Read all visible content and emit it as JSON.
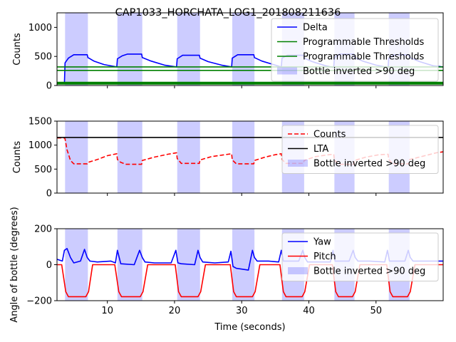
{
  "chart_data": [
    {
      "type": "line",
      "title": "CAP1033_HORCHATA_LOG1_201808211636",
      "xlabel": "",
      "ylabel": "Counts",
      "xlim": [
        2.5,
        60
      ],
      "ylim": [
        0,
        1250
      ],
      "xticks": [
        10,
        20,
        30,
        40,
        50
      ],
      "xtick_labels": [
        "",
        "",
        "",
        "",
        ""
      ],
      "yticks": [
        0,
        500,
        1000
      ],
      "ytick_labels": [
        "0",
        "500",
        "1000"
      ],
      "legend_position": "upper-right",
      "shaded_regions": {
        "name": "Bottle inverted >90 deg",
        "color": "#0000ff",
        "intervals": [
          [
            3.7,
            7.1
          ],
          [
            11.5,
            15.2
          ],
          [
            20.4,
            23.8
          ],
          [
            28.6,
            31.9
          ],
          [
            36.0,
            39.3
          ],
          [
            43.8,
            46.8
          ],
          [
            51.9,
            55.0
          ]
        ]
      },
      "series": [
        {
          "name": "Delta",
          "color": "#0000ff",
          "x": [
            2.5,
            3.6,
            3.7,
            4.2,
            5.0,
            7.0,
            7.1,
            8.0,
            9.5,
            11.4,
            11.5,
            12.2,
            13.0,
            15.1,
            15.2,
            16.5,
            18.5,
            20.3,
            20.4,
            21.2,
            23.7,
            23.8,
            25.0,
            27.0,
            28.5,
            28.6,
            29.4,
            31.8,
            31.9,
            33.0,
            35.0,
            35.9,
            36.0,
            36.8,
            39.2,
            39.3,
            40.5,
            42.5,
            43.7,
            43.8,
            44.6,
            46.7,
            46.8,
            48.0,
            50.0,
            51.8,
            51.9,
            52.7,
            54.9,
            55.0,
            56.5,
            58.5,
            60.0
          ],
          "y": [
            30,
            30,
            390,
            470,
            530,
            530,
            480,
            420,
            360,
            320,
            460,
            510,
            540,
            540,
            480,
            420,
            350,
            320,
            460,
            520,
            520,
            470,
            410,
            350,
            320,
            470,
            530,
            530,
            480,
            420,
            350,
            320,
            470,
            520,
            520,
            470,
            410,
            340,
            310,
            480,
            540,
            540,
            480,
            420,
            350,
            310,
            470,
            530,
            530,
            480,
            410,
            340,
            320
          ]
        },
        {
          "name": "Programmable Thresholds",
          "color": "#008000",
          "x": [
            2.5,
            60
          ],
          "y": [
            320,
            320
          ]
        },
        {
          "name": "Programmable Thresholds",
          "color": "#008000",
          "x": [
            2.5,
            60
          ],
          "y": [
            260,
            260
          ]
        },
        {
          "name": "",
          "color": "#008000",
          "x": [
            2.5,
            60
          ],
          "y": [
            40,
            40
          ]
        }
      ]
    },
    {
      "type": "line",
      "title": "",
      "xlabel": "",
      "ylabel": "Counts",
      "xlim": [
        2.5,
        60
      ],
      "ylim": [
        0,
        1500
      ],
      "xticks": [
        10,
        20,
        30,
        40,
        50
      ],
      "xtick_labels": [
        "",
        "",
        "",
        "",
        ""
      ],
      "yticks": [
        0,
        500,
        1000,
        1500
      ],
      "ytick_labels": [
        "0",
        "500",
        "1000",
        "1500"
      ],
      "legend_position": "upper-right",
      "shaded_regions": {
        "name": "Bottle inverted >90 deg",
        "color": "#0000ff",
        "intervals": [
          [
            3.7,
            7.1
          ],
          [
            11.5,
            15.2
          ],
          [
            20.4,
            23.8
          ],
          [
            28.6,
            31.9
          ],
          [
            36.0,
            39.3
          ],
          [
            43.8,
            46.8
          ],
          [
            51.9,
            55.0
          ]
        ]
      },
      "series": [
        {
          "name": "Counts",
          "color": "#ff0000",
          "dashed": true,
          "x": [
            2.5,
            3.6,
            3.7,
            4.0,
            4.5,
            5.0,
            7.0,
            7.1,
            8.5,
            10.0,
            11.4,
            11.5,
            12.0,
            12.8,
            15.1,
            15.2,
            17.0,
            19.0,
            20.3,
            20.4,
            21.0,
            23.7,
            23.8,
            25.5,
            27.5,
            28.5,
            28.6,
            29.2,
            31.8,
            31.9,
            33.5,
            35.0,
            35.9,
            36.0,
            36.6,
            39.2,
            39.3,
            41.0,
            43.0,
            43.7,
            43.8,
            44.4,
            46.7,
            46.8,
            48.5,
            50.5,
            51.8,
            51.9,
            52.5,
            54.9,
            55.0,
            57.0,
            59.0,
            60.0
          ],
          "y": [
            1150,
            1150,
            1130,
            900,
            680,
            610,
            610,
            640,
            700,
            780,
            820,
            700,
            640,
            600,
            600,
            680,
            750,
            810,
            840,
            720,
            620,
            620,
            690,
            760,
            800,
            820,
            690,
            610,
            610,
            680,
            750,
            800,
            820,
            700,
            620,
            620,
            680,
            760,
            800,
            810,
            690,
            600,
            600,
            680,
            750,
            800,
            810,
            700,
            610,
            610,
            700,
            770,
            840,
            860
          ]
        },
        {
          "name": "LTA",
          "color": "#000000",
          "x": [
            2.5,
            60
          ],
          "y": [
            1160,
            1160
          ]
        }
      ]
    },
    {
      "type": "line",
      "title": "",
      "xlabel": "Time (seconds)",
      "ylabel": "Angle of bottle (degrees)",
      "xlim": [
        2.5,
        60
      ],
      "ylim": [
        -200,
        200
      ],
      "xticks": [
        10,
        20,
        30,
        40,
        50
      ],
      "xtick_labels": [
        "10",
        "20",
        "30",
        "40",
        "50"
      ],
      "yticks": [
        -200,
        0,
        200
      ],
      "ytick_labels": [
        "−200",
        "0",
        "200"
      ],
      "legend_position": "upper-right",
      "shaded_regions": {
        "name": "Bottle inverted >90 deg",
        "color": "#0000ff",
        "intervals": [
          [
            3.7,
            7.1
          ],
          [
            11.5,
            15.2
          ],
          [
            20.4,
            23.8
          ],
          [
            28.6,
            31.9
          ],
          [
            36.0,
            39.3
          ],
          [
            43.8,
            46.8
          ],
          [
            51.9,
            55.0
          ]
        ]
      },
      "series": [
        {
          "name": "Yaw",
          "color": "#0000ff",
          "x": [
            2.5,
            3.3,
            3.6,
            4.0,
            4.5,
            5.0,
            6.0,
            6.6,
            7.0,
            7.4,
            8.5,
            10.5,
            11.2,
            11.5,
            12.0,
            14.0,
            14.8,
            15.2,
            15.6,
            17.0,
            19.5,
            20.2,
            20.5,
            21.0,
            23.0,
            23.5,
            23.8,
            24.2,
            26.0,
            28.0,
            28.4,
            28.7,
            29.2,
            31.0,
            31.6,
            31.9,
            32.3,
            34.0,
            35.5,
            35.9,
            36.2,
            36.8,
            38.5,
            39.1,
            39.4,
            39.8,
            41.5,
            43.2,
            43.6,
            43.9,
            44.4,
            46.0,
            46.6,
            46.9,
            47.3,
            49.0,
            51.3,
            51.7,
            52.0,
            52.5,
            54.3,
            54.8,
            55.1,
            55.5,
            57.5,
            60.0
          ],
          "y": [
            30,
            20,
            80,
            90,
            40,
            10,
            20,
            85,
            40,
            20,
            15,
            20,
            10,
            80,
            5,
            0,
            80,
            40,
            15,
            10,
            10,
            80,
            10,
            5,
            0,
            80,
            40,
            15,
            10,
            15,
            75,
            -10,
            -20,
            -30,
            80,
            40,
            20,
            20,
            15,
            80,
            20,
            20,
            20,
            80,
            40,
            15,
            15,
            15,
            80,
            20,
            20,
            20,
            80,
            40,
            20,
            20,
            15,
            80,
            20,
            20,
            20,
            80,
            40,
            20,
            20,
            20
          ]
        },
        {
          "name": "Pitch",
          "color": "#ff0000",
          "x": [
            2.5,
            3.2,
            3.8,
            4.2,
            6.8,
            7.2,
            7.8,
            11.1,
            11.7,
            12.1,
            14.9,
            15.3,
            16.0,
            20.1,
            20.6,
            21.0,
            23.5,
            23.9,
            24.6,
            28.3,
            28.8,
            29.2,
            31.6,
            32.0,
            32.7,
            35.7,
            36.2,
            36.6,
            39.0,
            39.4,
            40.1,
            43.5,
            44.0,
            44.4,
            46.5,
            46.9,
            47.6,
            51.6,
            52.1,
            52.5,
            54.7,
            55.1,
            55.8,
            60.0
          ],
          "y": [
            0,
            0,
            -150,
            -178,
            -178,
            -150,
            0,
            0,
            -150,
            -178,
            -178,
            -150,
            0,
            0,
            -150,
            -178,
            -178,
            -150,
            0,
            0,
            -150,
            -178,
            -178,
            -150,
            0,
            0,
            -150,
            -178,
            -178,
            -150,
            0,
            0,
            -150,
            -178,
            -178,
            -150,
            0,
            0,
            -150,
            -178,
            -178,
            -150,
            0,
            0
          ]
        }
      ]
    }
  ]
}
